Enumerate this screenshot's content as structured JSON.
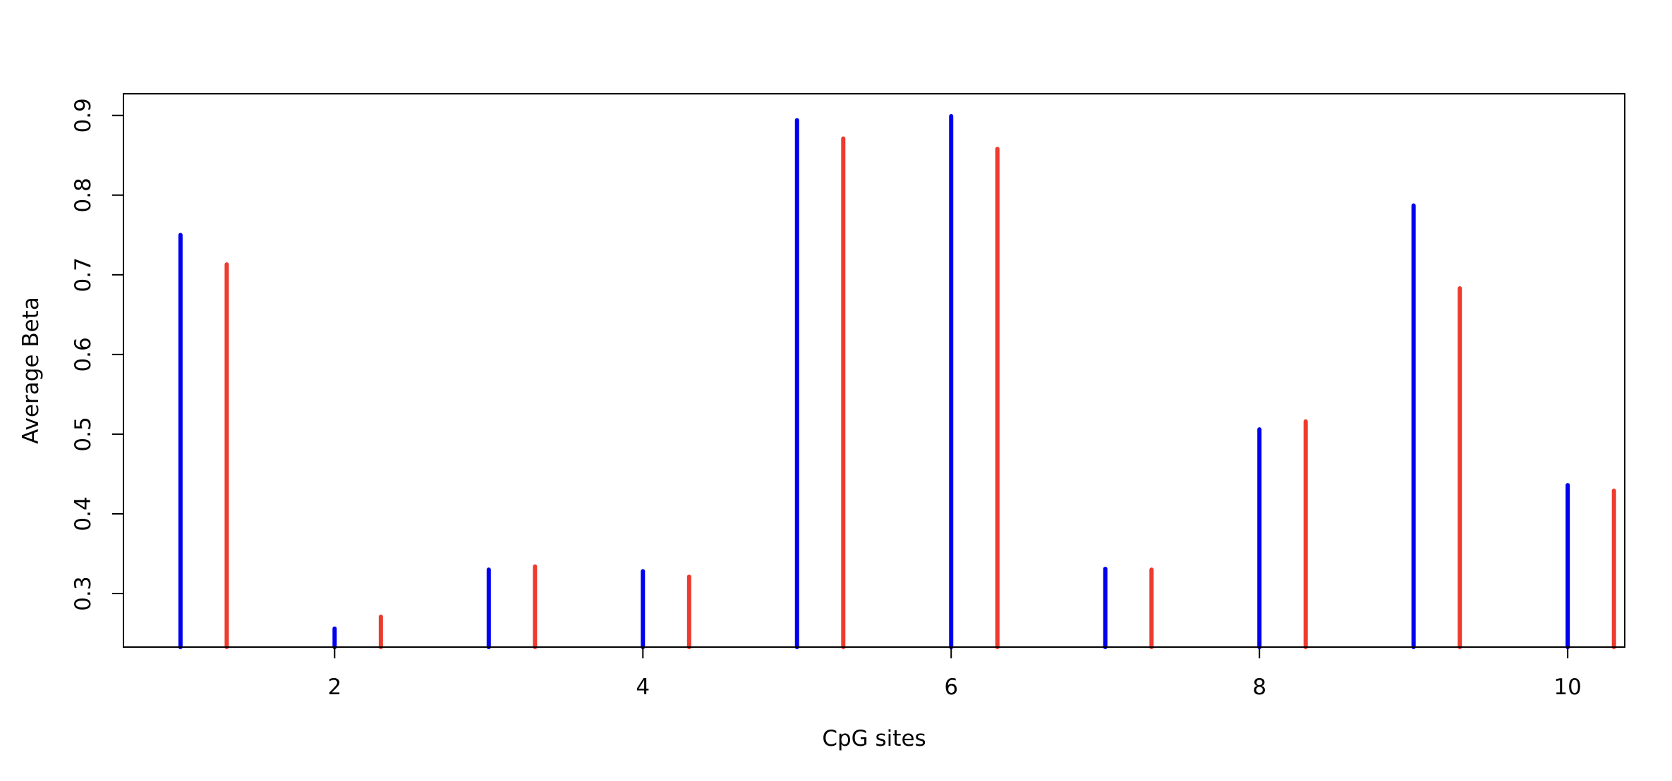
{
  "chart_data": {
    "type": "bar",
    "style": "vertical lines (type h)",
    "title": "",
    "xlabel": "CpG sites",
    "ylabel": "Average Beta",
    "xlim": [
      0.63,
      10.37
    ],
    "ylim": [
      0.2328,
      0.9272
    ],
    "x_ticks": [
      2,
      4,
      6,
      8,
      10
    ],
    "y_ticks": [
      0.3,
      0.4,
      0.5,
      0.6,
      0.7,
      0.8,
      0.9
    ],
    "grid": false,
    "legend": "none",
    "series": [
      {
        "color": "#0000ee",
        "x": [
          1,
          2,
          3,
          4,
          5,
          6,
          7,
          8,
          9,
          10
        ],
        "values": [
          0.75,
          0.256,
          0.33,
          0.328,
          0.894,
          0.899,
          0.331,
          0.506,
          0.787,
          0.436
        ]
      },
      {
        "color": "#ee3b2f",
        "x": [
          1.3,
          2.3,
          3.3,
          4.3,
          5.3,
          6.3,
          7.3,
          8.3,
          9.3,
          10.3
        ],
        "values": [
          0.713,
          0.271,
          0.334,
          0.321,
          0.871,
          0.858,
          0.33,
          0.516,
          0.683,
          0.429
        ]
      }
    ]
  }
}
